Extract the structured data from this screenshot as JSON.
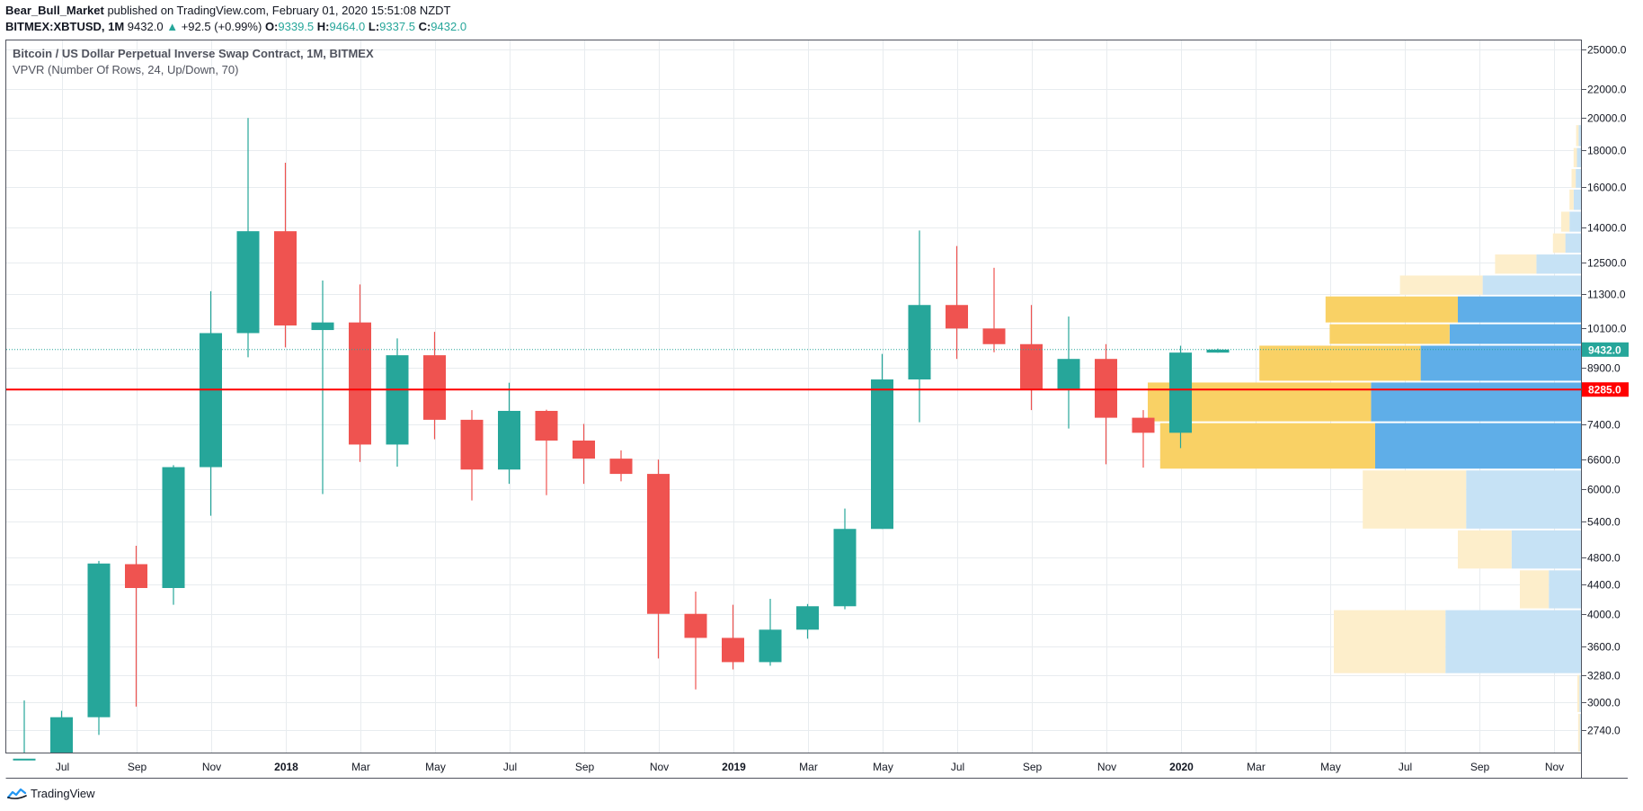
{
  "header": {
    "author": "Bear_Bull_Market",
    "published": "published on TradingView.com, February 01, 2020 15:51:08 NZDT",
    "symbol": "BITMEX:XBTUSD, 1M",
    "last": "9432.0",
    "arrow": "▲",
    "change": "+92.5 (+0.99%)",
    "o_label": "O:",
    "o_val": "9339.5",
    "h_label": "H:",
    "h_val": "9464.0",
    "l_label": "L:",
    "l_val": "9337.5",
    "c_label": "C:",
    "c_val": "9432.0"
  },
  "legend": {
    "title": "Bitcoin / US Dollar Perpetual Inverse Swap Contract, 1M, BITMEX",
    "indicator": "VPVR (Number Of Rows, 24, Up/Down, 70)"
  },
  "footer": {
    "brand": "TradingView",
    "logo_icon": "tradingview-logo-icon"
  },
  "colors": {
    "up": "#26a69a",
    "down": "#ef5350",
    "vol_up": "#5faee8",
    "vol_down": "#f9d165",
    "vol_up_light": "#c6e2f5",
    "vol_down_light": "#fdeecb",
    "poc": "#ff0000",
    "grid": "#e8ecef"
  },
  "chart_data": {
    "type": "candlestick",
    "scale": "log",
    "ylim": [
      2550,
      25800
    ],
    "price_ticks": [
      "25000.0",
      "22000.0",
      "20000.0",
      "18000.0",
      "16000.0",
      "14000.0",
      "12500.0",
      "11300.0",
      "10100.0",
      "8900.0",
      "7400.0",
      "6600.0",
      "6000.0",
      "5400.0",
      "4800.0",
      "4400.0",
      "4000.0",
      "3600.0",
      "3280.0",
      "3000.0",
      "2740.0"
    ],
    "x_labels": [
      {
        "i": 1,
        "label": "Jul",
        "bold": false
      },
      {
        "i": 3,
        "label": "Sep",
        "bold": false
      },
      {
        "i": 5,
        "label": "Nov",
        "bold": false
      },
      {
        "i": 7,
        "label": "2018",
        "bold": true
      },
      {
        "i": 9,
        "label": "Mar",
        "bold": false
      },
      {
        "i": 11,
        "label": "May",
        "bold": false
      },
      {
        "i": 13,
        "label": "Jul",
        "bold": false
      },
      {
        "i": 15,
        "label": "Sep",
        "bold": false
      },
      {
        "i": 17,
        "label": "Nov",
        "bold": false
      },
      {
        "i": 19,
        "label": "2019",
        "bold": true
      },
      {
        "i": 21,
        "label": "Mar",
        "bold": false
      },
      {
        "i": 23,
        "label": "May",
        "bold": false
      },
      {
        "i": 25,
        "label": "Jul",
        "bold": false
      },
      {
        "i": 27,
        "label": "Sep",
        "bold": false
      },
      {
        "i": 29,
        "label": "Nov",
        "bold": false
      },
      {
        "i": 31,
        "label": "2020",
        "bold": true
      },
      {
        "i": 33,
        "label": "Mar",
        "bold": false
      },
      {
        "i": 35,
        "label": "May",
        "bold": false
      },
      {
        "i": 37,
        "label": "Jul",
        "bold": false
      },
      {
        "i": 39,
        "label": "Sep",
        "bold": false
      },
      {
        "i": 41,
        "label": "Nov",
        "bold": false
      }
    ],
    "candles": [
      {
        "t": "2017-06",
        "o": 2300,
        "h": 3020,
        "l": 2200,
        "c": 2500
      },
      {
        "t": "2017-07",
        "o": 2470,
        "h": 2920,
        "l": 1850,
        "c": 2860
      },
      {
        "t": "2017-08",
        "o": 2860,
        "h": 4750,
        "l": 2700,
        "c": 4710
      },
      {
        "t": "2017-09",
        "o": 4700,
        "h": 4990,
        "l": 2960,
        "c": 4350
      },
      {
        "t": "2017-10",
        "o": 4350,
        "h": 6480,
        "l": 4120,
        "c": 6440
      },
      {
        "t": "2017-11",
        "o": 6440,
        "h": 11400,
        "l": 5500,
        "c": 9950
      },
      {
        "t": "2017-12",
        "o": 9950,
        "h": 20000,
        "l": 9200,
        "c": 13850
      },
      {
        "t": "2018-01",
        "o": 13850,
        "h": 17300,
        "l": 9500,
        "c": 10200
      },
      {
        "t": "2018-02",
        "o": 10050,
        "h": 11800,
        "l": 5900,
        "c": 10300
      },
      {
        "t": "2018-03",
        "o": 10300,
        "h": 11650,
        "l": 6550,
        "c": 6930
      },
      {
        "t": "2018-04",
        "o": 6930,
        "h": 9780,
        "l": 6450,
        "c": 9260
      },
      {
        "t": "2018-05",
        "o": 9260,
        "h": 9990,
        "l": 7050,
        "c": 7510
      },
      {
        "t": "2018-06",
        "o": 7510,
        "h": 7750,
        "l": 5780,
        "c": 6390
      },
      {
        "t": "2018-07",
        "o": 6390,
        "h": 8470,
        "l": 6100,
        "c": 7730
      },
      {
        "t": "2018-08",
        "o": 7730,
        "h": 7760,
        "l": 5880,
        "c": 7020
      },
      {
        "t": "2018-09",
        "o": 7020,
        "h": 7410,
        "l": 6100,
        "c": 6620
      },
      {
        "t": "2018-10",
        "o": 6620,
        "h": 6800,
        "l": 6150,
        "c": 6300
      },
      {
        "t": "2018-11",
        "o": 6300,
        "h": 6600,
        "l": 3460,
        "c": 4000
      },
      {
        "t": "2018-12",
        "o": 4000,
        "h": 4300,
        "l": 3130,
        "c": 3700
      },
      {
        "t": "2019-01",
        "o": 3700,
        "h": 4120,
        "l": 3340,
        "c": 3420
      },
      {
        "t": "2019-02",
        "o": 3420,
        "h": 4200,
        "l": 3380,
        "c": 3800
      },
      {
        "t": "2019-03",
        "o": 3800,
        "h": 4130,
        "l": 3690,
        "c": 4100
      },
      {
        "t": "2019-04",
        "o": 4100,
        "h": 5630,
        "l": 4060,
        "c": 5270
      },
      {
        "t": "2019-05",
        "o": 5270,
        "h": 9300,
        "l": 5270,
        "c": 8560
      },
      {
        "t": "2019-06",
        "o": 8560,
        "h": 13880,
        "l": 7450,
        "c": 10900
      },
      {
        "t": "2019-07",
        "o": 10900,
        "h": 13200,
        "l": 9150,
        "c": 10100
      },
      {
        "t": "2019-08",
        "o": 10100,
        "h": 12300,
        "l": 9350,
        "c": 9600
      },
      {
        "t": "2019-09",
        "o": 9600,
        "h": 10900,
        "l": 7750,
        "c": 8300
      },
      {
        "t": "2019-10",
        "o": 8300,
        "h": 10500,
        "l": 7300,
        "c": 9150
      },
      {
        "t": "2019-11",
        "o": 9150,
        "h": 9600,
        "l": 6500,
        "c": 7560
      },
      {
        "t": "2019-12",
        "o": 7560,
        "h": 7750,
        "l": 6430,
        "c": 7200
      },
      {
        "t": "2020-01",
        "o": 7200,
        "h": 9550,
        "l": 6850,
        "c": 9340
      },
      {
        "t": "2020-02",
        "o": 9339.5,
        "h": 9464,
        "l": 9337.5,
        "c": 9432
      }
    ],
    "last_price": 9432.0,
    "last_price_label": "9432.0",
    "poc_price": 8285.0,
    "poc_label": "8285.0",
    "volume_profile": [
      {
        "lo": 2550,
        "hi": 2900,
        "up": 0.005,
        "down": 0.004,
        "inside": false
      },
      {
        "lo": 2900,
        "hi": 3290,
        "up": 0.006,
        "down": 0.005,
        "inside": false
      },
      {
        "lo": 3290,
        "hi": 4060,
        "up": 0.33,
        "down": 0.27,
        "inside": false
      },
      {
        "lo": 4060,
        "hi": 4620,
        "up": 0.08,
        "down": 0.07,
        "inside": false
      },
      {
        "lo": 4620,
        "hi": 5260,
        "up": 0.17,
        "down": 0.13,
        "inside": false
      },
      {
        "lo": 5260,
        "hi": 6390,
        "up": 0.28,
        "down": 0.25,
        "inside": false
      },
      {
        "lo": 6390,
        "hi": 7450,
        "up": 0.5,
        "down": 0.52,
        "inside": true
      },
      {
        "lo": 7450,
        "hi": 8500,
        "up": 0.51,
        "down": 0.54,
        "inside": true
      },
      {
        "lo": 8500,
        "hi": 9580,
        "up": 0.39,
        "down": 0.39,
        "inside": true
      },
      {
        "lo": 9580,
        "hi": 10270,
        "up": 0.32,
        "down": 0.29,
        "inside": true
      },
      {
        "lo": 10270,
        "hi": 11240,
        "up": 0.3,
        "down": 0.32,
        "inside": true
      },
      {
        "lo": 11240,
        "hi": 12030,
        "up": 0.24,
        "down": 0.2,
        "inside": false
      },
      {
        "lo": 12030,
        "hi": 12880,
        "up": 0.11,
        "down": 0.1,
        "inside": false
      },
      {
        "lo": 12880,
        "hi": 13790,
        "up": 0.04,
        "down": 0.03,
        "inside": false
      },
      {
        "lo": 13790,
        "hi": 14800,
        "up": 0.03,
        "down": 0.02,
        "inside": false
      },
      {
        "lo": 14800,
        "hi": 15900,
        "up": 0.02,
        "down": 0.01,
        "inside": false
      },
      {
        "lo": 15900,
        "hi": 17000,
        "up": 0.015,
        "down": 0.01,
        "inside": false
      },
      {
        "lo": 17000,
        "hi": 18200,
        "up": 0.012,
        "down": 0.008,
        "inside": false
      },
      {
        "lo": 18200,
        "hi": 19600,
        "up": 0.008,
        "down": 0.006,
        "inside": false
      }
    ]
  }
}
